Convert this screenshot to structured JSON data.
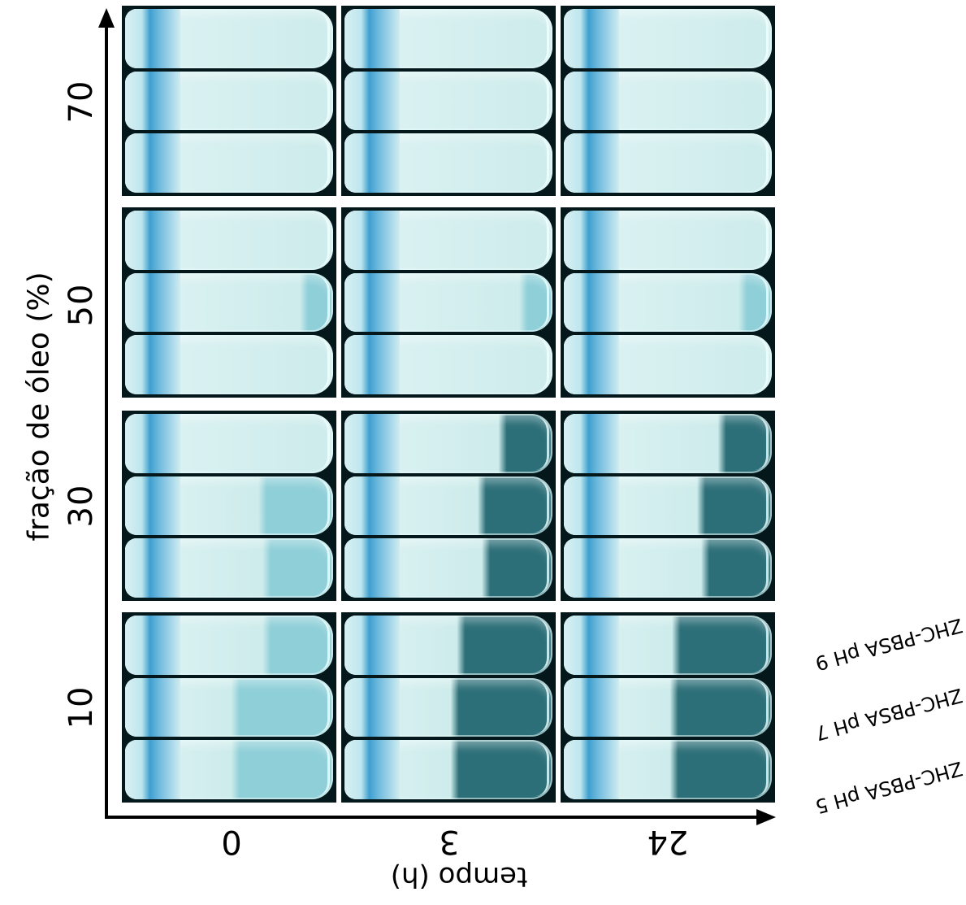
{
  "yaxis": {
    "label": "fração de óleo (%)",
    "rows": [
      "70",
      "50",
      "30",
      "10"
    ]
  },
  "xaxis": {
    "label": "tempo (h)",
    "columns": [
      "0",
      "3",
      "24"
    ]
  },
  "legend": [
    "ZHC-PBSA pH 9",
    "ZHC-PBSA pH 7",
    "ZHC-PBSA pH 5"
  ],
  "colors": {
    "background": "#04171a",
    "emulsion": "#dff3f4",
    "serum_clear": "#8fcfd8",
    "serum_dark": "#2d6f78",
    "cap_blue": "#3f9fcf",
    "axis": "#000000"
  },
  "panels": [
    {
      "row": "70",
      "col": "0",
      "vials": [
        {
          "cream": 1.0
        },
        {
          "cream": 1.0
        },
        {
          "cream": 1.0
        }
      ]
    },
    {
      "row": "70",
      "col": "3",
      "vials": [
        {
          "cream": 1.0
        },
        {
          "cream": 1.0
        },
        {
          "cream": 1.0
        }
      ]
    },
    {
      "row": "70",
      "col": "24",
      "vials": [
        {
          "cream": 1.0
        },
        {
          "cream": 1.0
        },
        {
          "cream": 1.0
        }
      ]
    },
    {
      "row": "50",
      "col": "0",
      "vials": [
        {
          "cream": 1.0
        },
        {
          "cream": 0.88
        },
        {
          "cream": 1.0
        }
      ]
    },
    {
      "row": "50",
      "col": "3",
      "vials": [
        {
          "cream": 1.0
        },
        {
          "cream": 0.88
        },
        {
          "cream": 1.0
        }
      ]
    },
    {
      "row": "50",
      "col": "24",
      "vials": [
        {
          "cream": 1.0
        },
        {
          "cream": 0.88
        },
        {
          "cream": 1.0
        }
      ]
    },
    {
      "row": "30",
      "col": "0",
      "vials": [
        {
          "cream": 1.0
        },
        {
          "cream": 0.68
        },
        {
          "cream": 0.7
        }
      ]
    },
    {
      "row": "30",
      "col": "3",
      "vials": [
        {
          "cream": 0.78
        },
        {
          "cream": 0.68
        },
        {
          "cream": 0.7
        }
      ]
    },
    {
      "row": "30",
      "col": "24",
      "vials": [
        {
          "cream": 0.78
        },
        {
          "cream": 0.68
        },
        {
          "cream": 0.7
        }
      ]
    },
    {
      "row": "10",
      "col": "0",
      "vials": [
        {
          "cream": 0.7
        },
        {
          "cream": 0.55
        },
        {
          "cream": 0.55
        }
      ]
    },
    {
      "row": "10",
      "col": "3",
      "vials": [
        {
          "cream": 0.58
        },
        {
          "cream": 0.55
        },
        {
          "cream": 0.55
        }
      ]
    },
    {
      "row": "10",
      "col": "24",
      "vials": [
        {
          "cream": 0.56
        },
        {
          "cream": 0.55
        },
        {
          "cream": 0.55
        }
      ]
    }
  ]
}
